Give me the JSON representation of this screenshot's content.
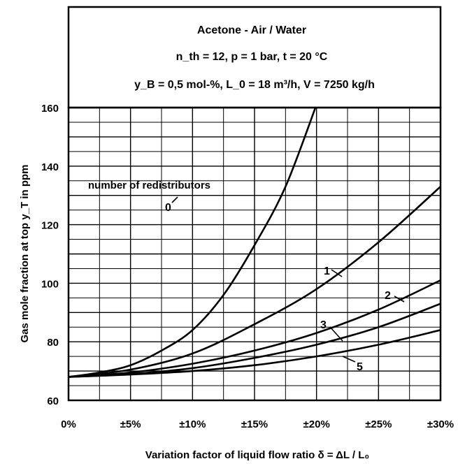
{
  "chart_data": {
    "type": "line",
    "title_lines": [
      "Acetone - Air / Water",
      "n_th = 12, p = 1 bar, t = 20 °C",
      "y_B = 0,5 mol-%, L_0 = 18 m³/h, V = 7250 kg/h"
    ],
    "xlabel": "Variation factor of liquid flow ratio δ = ΔL / L₀",
    "ylabel": "Gas mole fraction at top y_T in ppm",
    "x_ticks": [
      0,
      5,
      10,
      15,
      20,
      25,
      30
    ],
    "x_tick_labels": [
      "0%",
      "±5%",
      "±10%",
      "±15%",
      "±20%",
      "±25%",
      "±30%"
    ],
    "y_ticks": [
      60,
      80,
      100,
      120,
      140,
      160
    ],
    "y_tick_labels": [
      "60",
      "80",
      "100",
      "120",
      "140",
      "160"
    ],
    "xlim": [
      0,
      30
    ],
    "ylim": [
      60,
      160
    ],
    "grid": true,
    "annotation": "number of redistributors",
    "series": [
      {
        "name": "0",
        "x": [
          0,
          2.5,
          5,
          7.5,
          10,
          12.5,
          15,
          17.5,
          20
        ],
        "y": [
          68,
          69.5,
          72,
          77,
          84,
          96,
          113,
          133,
          161
        ]
      },
      {
        "name": "1",
        "x": [
          0,
          5,
          10,
          15,
          20,
          25,
          30
        ],
        "y": [
          68,
          70.5,
          76,
          86,
          98,
          114,
          133
        ]
      },
      {
        "name": "2",
        "x": [
          0,
          5,
          10,
          15,
          20,
          25,
          30
        ],
        "y": [
          68,
          69.5,
          72.5,
          77,
          83,
          91,
          101
        ]
      },
      {
        "name": "3",
        "x": [
          0,
          5,
          10,
          15,
          20,
          25,
          30
        ],
        "y": [
          68,
          69,
          71,
          74.5,
          79,
          85,
          93
        ]
      },
      {
        "name": "5",
        "x": [
          0,
          5,
          10,
          15,
          20,
          25,
          30
        ],
        "y": [
          68,
          68.8,
          70,
          72,
          75,
          79,
          84
        ]
      }
    ]
  }
}
